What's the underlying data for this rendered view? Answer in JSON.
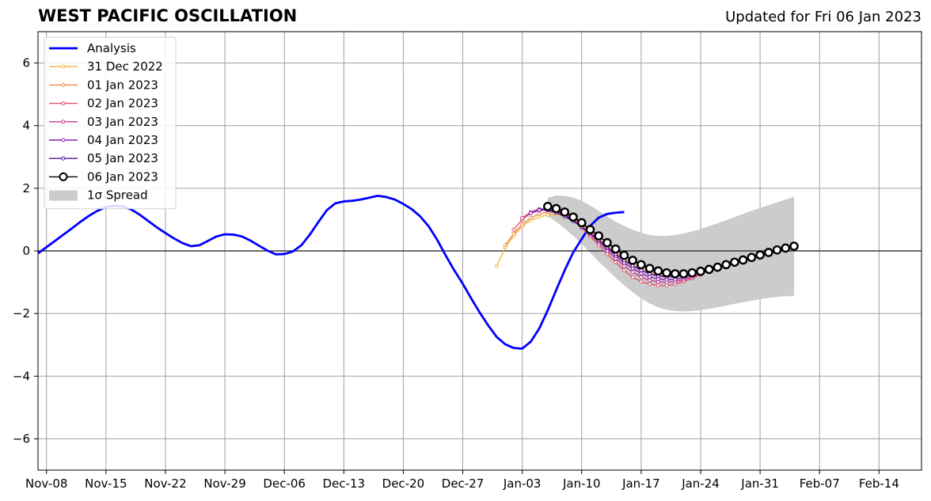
{
  "title": "WEST PACIFIC OSCILLATION",
  "updated": "Updated for Fri 06 Jan 2023",
  "chart_data": {
    "type": "line",
    "x_start_date": "2022-11-07",
    "x_end_date": "2023-02-19",
    "ylim": [
      -7,
      7
    ],
    "yticks": [
      -6,
      -4,
      -2,
      0,
      2,
      4,
      6
    ],
    "ytick_labels": [
      "−6",
      "−4",
      "−2",
      "0",
      "2",
      "4",
      "6"
    ],
    "xticks": [
      "2022-11-08",
      "2022-11-15",
      "2022-11-22",
      "2022-11-29",
      "2022-12-06",
      "2022-12-13",
      "2022-12-20",
      "2022-12-27",
      "2023-01-03",
      "2023-01-10",
      "2023-01-17",
      "2023-01-24",
      "2023-01-31",
      "2023-02-07",
      "2023-02-14"
    ],
    "xtick_labels": [
      "Nov-08",
      "Nov-15",
      "Nov-22",
      "Nov-29",
      "Dec-06",
      "Dec-13",
      "Dec-20",
      "Dec-27",
      "Jan-03",
      "Jan-10",
      "Jan-17",
      "Jan-24",
      "Jan-31",
      "Feb-07",
      "Feb-14"
    ],
    "grid": true,
    "legend_position": "upper-left",
    "analysis": {
      "name": "Analysis",
      "color": "#0000ff",
      "start_date": "2022-11-07",
      "values": [
        -0.08,
        0.12,
        0.32,
        0.52,
        0.72,
        0.93,
        1.12,
        1.28,
        1.4,
        1.44,
        1.42,
        1.32,
        1.15,
        0.95,
        0.75,
        0.57,
        0.4,
        0.25,
        0.15,
        0.18,
        0.32,
        0.46,
        0.53,
        0.52,
        0.46,
        0.33,
        0.17,
        0.01,
        -0.11,
        -0.1,
        -0.02,
        0.18,
        0.52,
        0.92,
        1.3,
        1.52,
        1.58,
        1.6,
        1.64,
        1.7,
        1.76,
        1.72,
        1.64,
        1.5,
        1.33,
        1.1,
        0.78,
        0.35,
        -0.15,
        -0.62,
        -1.05,
        -1.52,
        -1.97,
        -2.38,
        -2.75,
        -2.98,
        -3.1,
        -3.12,
        -2.9,
        -2.48,
        -1.9,
        -1.25,
        -0.62,
        -0.05,
        0.38,
        0.8,
        1.06,
        1.18,
        1.22,
        1.24
      ]
    },
    "forecasts": [
      {
        "name": "31 Dec 2022",
        "color": "#f2b53a",
        "start_date": "2022-12-31",
        "values": [
          -0.48,
          0.1,
          0.48,
          0.78,
          0.98,
          1.08,
          1.15,
          1.18,
          1.12,
          1.0,
          0.82,
          0.62,
          0.4,
          0.18,
          -0.05,
          -0.25,
          -0.42,
          -0.56,
          -0.66,
          -0.72,
          -0.76,
          -0.77,
          -0.76,
          -0.72,
          -0.66,
          -0.58
        ]
      },
      {
        "name": "01 Jan 2023",
        "color": "#ec8a4b",
        "start_date": "2023-01-01",
        "values": [
          0.18,
          0.55,
          0.85,
          1.05,
          1.18,
          1.24,
          1.24,
          1.18,
          1.05,
          0.85,
          0.62,
          0.38,
          0.15,
          -0.08,
          -0.3,
          -0.48,
          -0.62,
          -0.72,
          -0.78,
          -0.81,
          -0.81,
          -0.78,
          -0.72,
          -0.65,
          -0.56
        ]
      },
      {
        "name": "02 Jan 2023",
        "color": "#e0546e",
        "start_date": "2023-01-02",
        "values": [
          0.68,
          1.0,
          1.2,
          1.32,
          1.34,
          1.28,
          1.16,
          0.98,
          0.74,
          0.46,
          0.18,
          -0.1,
          -0.36,
          -0.62,
          -0.84,
          -0.98,
          -1.06,
          -1.1,
          -1.1,
          -1.06,
          -0.98,
          -0.88,
          -0.76,
          -0.62
        ]
      },
      {
        "name": "03 Jan 2023",
        "color": "#c03c8e",
        "start_date": "2023-01-03",
        "values": [
          1.05,
          1.24,
          1.34,
          1.36,
          1.3,
          1.18,
          1.0,
          0.78,
          0.52,
          0.26,
          0.0,
          -0.24,
          -0.48,
          -0.68,
          -0.84,
          -0.94,
          -0.99,
          -1.0,
          -0.98,
          -0.92,
          -0.84,
          -0.74,
          -0.62
        ]
      },
      {
        "name": "04 Jan 2023",
        "color": "#8e1cb2",
        "start_date": "2023-01-04",
        "values": [
          1.2,
          1.3,
          1.32,
          1.26,
          1.14,
          0.98,
          0.78,
          0.56,
          0.32,
          0.08,
          -0.16,
          -0.38,
          -0.56,
          -0.72,
          -0.83,
          -0.9,
          -0.92,
          -0.91,
          -0.86,
          -0.79,
          -0.7,
          -0.6
        ]
      },
      {
        "name": "05 Jan 2023",
        "color": "#55129a",
        "start_date": "2023-01-05",
        "values": [
          1.3,
          1.3,
          1.22,
          1.1,
          0.95,
          0.76,
          0.56,
          0.34,
          0.12,
          -0.1,
          -0.3,
          -0.47,
          -0.62,
          -0.73,
          -0.8,
          -0.83,
          -0.82,
          -0.78,
          -0.71,
          -0.62,
          -0.52
        ]
      }
    ],
    "current": {
      "name": "06 Jan 2023",
      "color": "#000000",
      "start_date": "2023-01-06",
      "values": [
        1.42,
        1.35,
        1.24,
        1.08,
        0.9,
        0.68,
        0.48,
        0.26,
        0.06,
        -0.14,
        -0.3,
        -0.44,
        -0.56,
        -0.64,
        -0.7,
        -0.73,
        -0.73,
        -0.7,
        -0.65,
        -0.59,
        -0.52,
        -0.44,
        -0.36,
        -0.29,
        -0.21,
        -0.13,
        -0.05,
        0.03,
        0.09,
        0.15
      ]
    },
    "spread": {
      "name": "1σ Spread",
      "color": "#cccccc",
      "start_date": "2023-01-06",
      "upper": [
        1.7,
        1.77,
        1.76,
        1.7,
        1.6,
        1.45,
        1.28,
        1.1,
        0.93,
        0.8,
        0.68,
        0.58,
        0.51,
        0.48,
        0.48,
        0.51,
        0.56,
        0.62,
        0.7,
        0.79,
        0.88,
        0.98,
        1.08,
        1.18,
        1.28,
        1.37,
        1.46,
        1.55,
        1.64,
        1.73
      ],
      "lower": [
        1.1,
        0.93,
        0.72,
        0.48,
        0.22,
        -0.06,
        -0.34,
        -0.6,
        -0.86,
        -1.1,
        -1.32,
        -1.52,
        -1.68,
        -1.8,
        -1.88,
        -1.92,
        -1.93,
        -1.92,
        -1.89,
        -1.85,
        -1.8,
        -1.75,
        -1.69,
        -1.64,
        -1.59,
        -1.54,
        -1.5,
        -1.47,
        -1.45,
        -1.44
      ]
    }
  }
}
